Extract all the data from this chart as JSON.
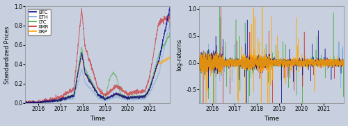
{
  "bg_color": "#c8d0e0",
  "left_panel": {
    "xlabel": "Time",
    "ylabel": "Standardized Prices",
    "ylim": [
      0.0,
      1.0
    ],
    "yticks": [
      0.0,
      0.2,
      0.4,
      0.6,
      0.8,
      1.0
    ],
    "xticks_years": [
      2016,
      2017,
      2018,
      2019,
      2020,
      2021
    ]
  },
  "right_panel": {
    "xlabel": "Time",
    "ylabel": "log-returns",
    "ylim": [
      -0.75,
      1.05
    ],
    "yticks": [
      -0.5,
      0.0,
      0.5,
      1.0
    ],
    "xticks_years": [
      2016,
      2017,
      2018,
      2019,
      2020,
      2021
    ]
  },
  "legend_entries": [
    "BTC",
    "ETH",
    "LTC",
    "XMR",
    "XRP"
  ],
  "legend_colors": [
    "#00008B",
    "#6FA8DC",
    "#38A832",
    "#CC2222",
    "#FFA500"
  ],
  "start_year": 2015.42,
  "end_year": 2021.92,
  "n_days": 2350
}
